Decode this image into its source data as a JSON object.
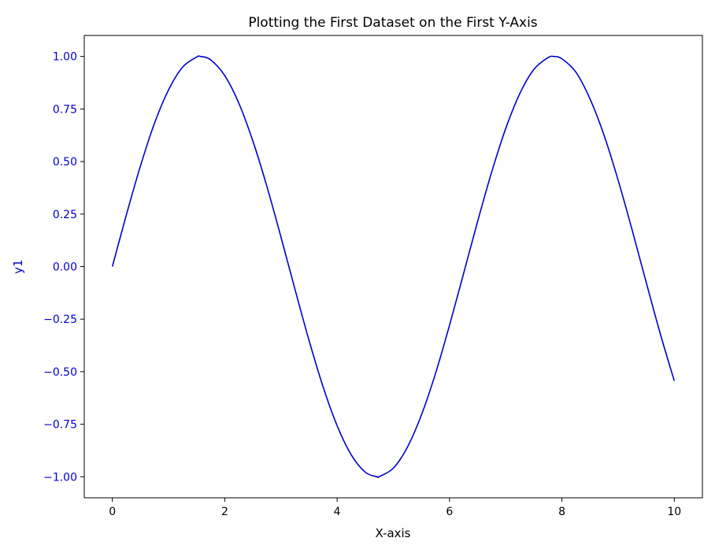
{
  "chart_data": {
    "type": "line",
    "title": "Plotting the First Dataset on the First Y-Axis",
    "xlabel": "X-axis",
    "ylabel": "y1",
    "xlim": [
      -0.5,
      10.5
    ],
    "ylim": [
      -1.1,
      1.1
    ],
    "x_ticks": [
      0,
      2,
      4,
      6,
      8,
      10
    ],
    "x_tick_labels": [
      "0",
      "2",
      "4",
      "6",
      "8",
      "10"
    ],
    "y_ticks": [
      1.0,
      0.75,
      0.5,
      0.25,
      0.0,
      -0.25,
      -0.5,
      -0.75,
      -1.0
    ],
    "y_tick_labels": [
      "1.00",
      "0.75",
      "0.50",
      "0.25",
      "0.00",
      "−0.25",
      "−0.50",
      "−0.75",
      "−1.00"
    ],
    "grid": false,
    "series": [
      {
        "color": "#0000cc",
        "x": [
          0,
          0.25,
          0.5,
          0.75,
          1.0,
          1.25,
          1.5,
          1.571,
          1.75,
          2.0,
          2.25,
          2.5,
          2.75,
          3.0,
          3.25,
          3.5,
          3.75,
          4.0,
          4.25,
          4.5,
          4.712,
          4.75,
          5.0,
          5.25,
          5.5,
          5.75,
          6.0,
          6.25,
          6.5,
          6.75,
          7.0,
          7.25,
          7.5,
          7.75,
          7.854,
          8.0,
          8.25,
          8.5,
          8.75,
          9.0,
          9.25,
          9.5,
          9.75,
          10.0
        ],
        "y": [
          0.0,
          0.247,
          0.479,
          0.682,
          0.841,
          0.949,
          0.997,
          1.0,
          0.984,
          0.909,
          0.778,
          0.598,
          0.382,
          0.141,
          -0.108,
          -0.351,
          -0.572,
          -0.757,
          -0.895,
          -0.978,
          -1.0,
          -0.999,
          -0.959,
          -0.859,
          -0.706,
          -0.509,
          -0.279,
          -0.033,
          0.215,
          0.45,
          0.657,
          0.823,
          0.938,
          0.994,
          1.0,
          0.989,
          0.925,
          0.798,
          0.625,
          0.412,
          0.174,
          -0.075,
          -0.319,
          -0.544
        ]
      }
    ],
    "ylabel_color": "#0000cc",
    "ytick_color": "#0000cc"
  }
}
